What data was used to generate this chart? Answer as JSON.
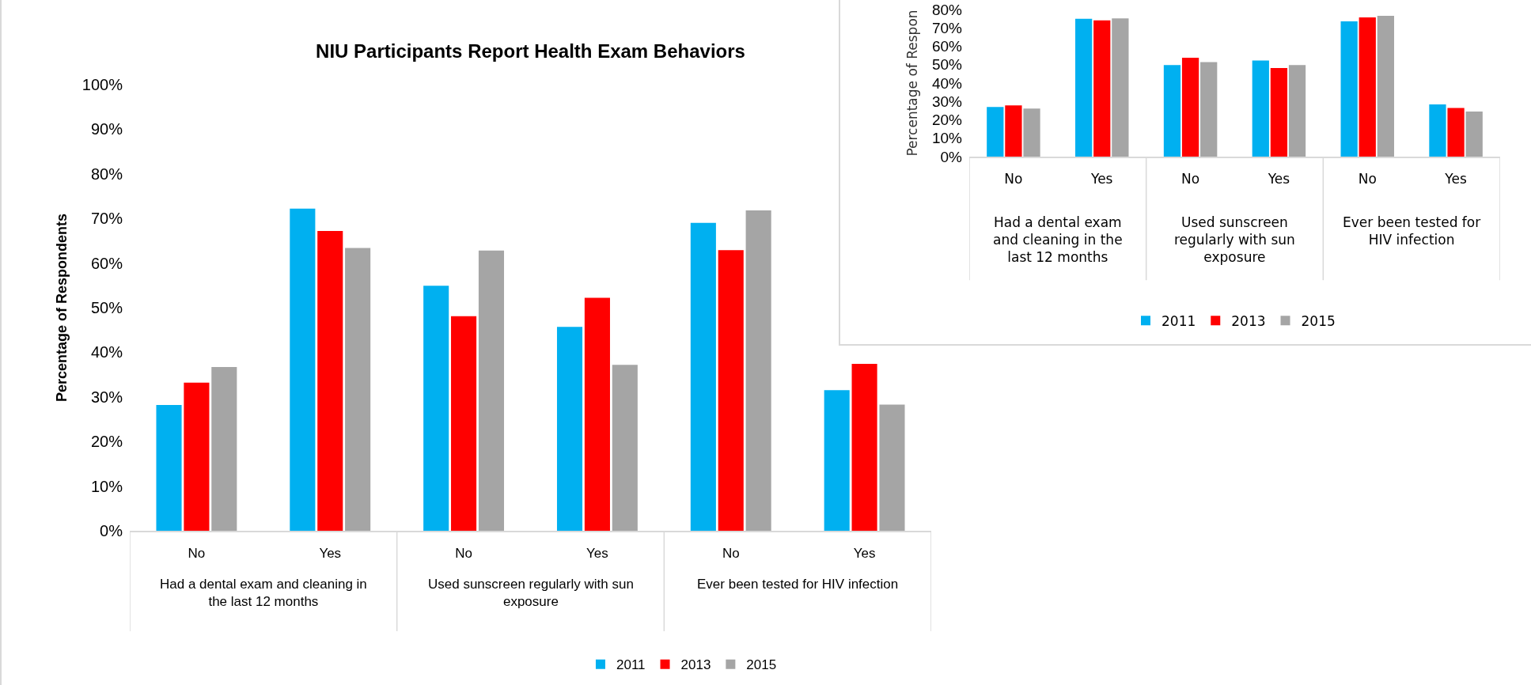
{
  "chart_data": [
    {
      "type": "bar",
      "title": "NIU Participants Report Health Exam Behaviors",
      "ylabel": "Percentage of Respondents",
      "categories": [
        "No",
        "Yes",
        "No",
        "Yes",
        "No",
        "Yes"
      ],
      "annotations": [
        "Had a dental exam and cleaning in the last 12 months",
        "Used sunscreen regularly with sun exposure",
        "Ever been tested for HIV infection"
      ],
      "series": [
        {
          "name": "2011",
          "color": "#00b0f0",
          "values": [
            28.2,
            72.2,
            54.9,
            45.7,
            69.0,
            31.5
          ]
        },
        {
          "name": "2013",
          "color": "#ff0000",
          "values": [
            33.2,
            67.2,
            48.1,
            52.2,
            62.9,
            37.4
          ]
        },
        {
          "name": "2015",
          "color": "#a5a5a5",
          "values": [
            36.7,
            63.4,
            62.8,
            37.2,
            71.8,
            28.3
          ]
        }
      ],
      "ylim": [
        0,
        100
      ],
      "yticks": [
        {
          "value": 0,
          "label": "0%"
        },
        {
          "value": 10,
          "label": "10%"
        },
        {
          "value": 20,
          "label": "20%"
        },
        {
          "value": 30,
          "label": "30%"
        },
        {
          "value": 40,
          "label": "40%"
        },
        {
          "value": 50,
          "label": "50%"
        },
        {
          "value": 60,
          "label": "60%"
        },
        {
          "value": 70,
          "label": "70%"
        },
        {
          "value": 80,
          "label": "80%"
        },
        {
          "value": 90,
          "label": "90%"
        },
        {
          "value": 100,
          "label": "100%"
        }
      ],
      "grid": false,
      "legend": "bottom"
    },
    {
      "type": "bar",
      "ylabel": "Percentage of Respon",
      "categories": [
        "No",
        "Yes",
        "No",
        "Yes",
        "No",
        "Yes"
      ],
      "annotations": [
        "Had a dental exam and cleaning in the last 12 months",
        "Used sunscreen regularly with sun exposure",
        "Ever been tested for HIV infection"
      ],
      "series": [
        {
          "name": "2011",
          "color": "#00b0f0",
          "values": [
            27.0,
            75.0,
            49.8,
            52.3,
            73.6,
            28.4
          ]
        },
        {
          "name": "2013",
          "color": "#ff0000",
          "values": [
            27.9,
            74.1,
            53.8,
            48.2,
            75.7,
            26.4
          ]
        },
        {
          "name": "2015",
          "color": "#a5a5a5",
          "values": [
            26.1,
            75.2,
            51.4,
            49.8,
            76.6,
            24.5
          ]
        }
      ],
      "ylim": [
        0,
        80
      ],
      "yticks": [
        {
          "value": 0,
          "label": "0%"
        },
        {
          "value": 10,
          "label": "10%"
        },
        {
          "value": 20,
          "label": "20%"
        },
        {
          "value": 30,
          "label": "30%"
        },
        {
          "value": 40,
          "label": "40%"
        },
        {
          "value": 50,
          "label": "50%"
        },
        {
          "value": 60,
          "label": "60%"
        },
        {
          "value": 70,
          "label": "70%"
        },
        {
          "value": 80,
          "label": "80%"
        }
      ],
      "grid": false,
      "legend": "bottom"
    }
  ]
}
